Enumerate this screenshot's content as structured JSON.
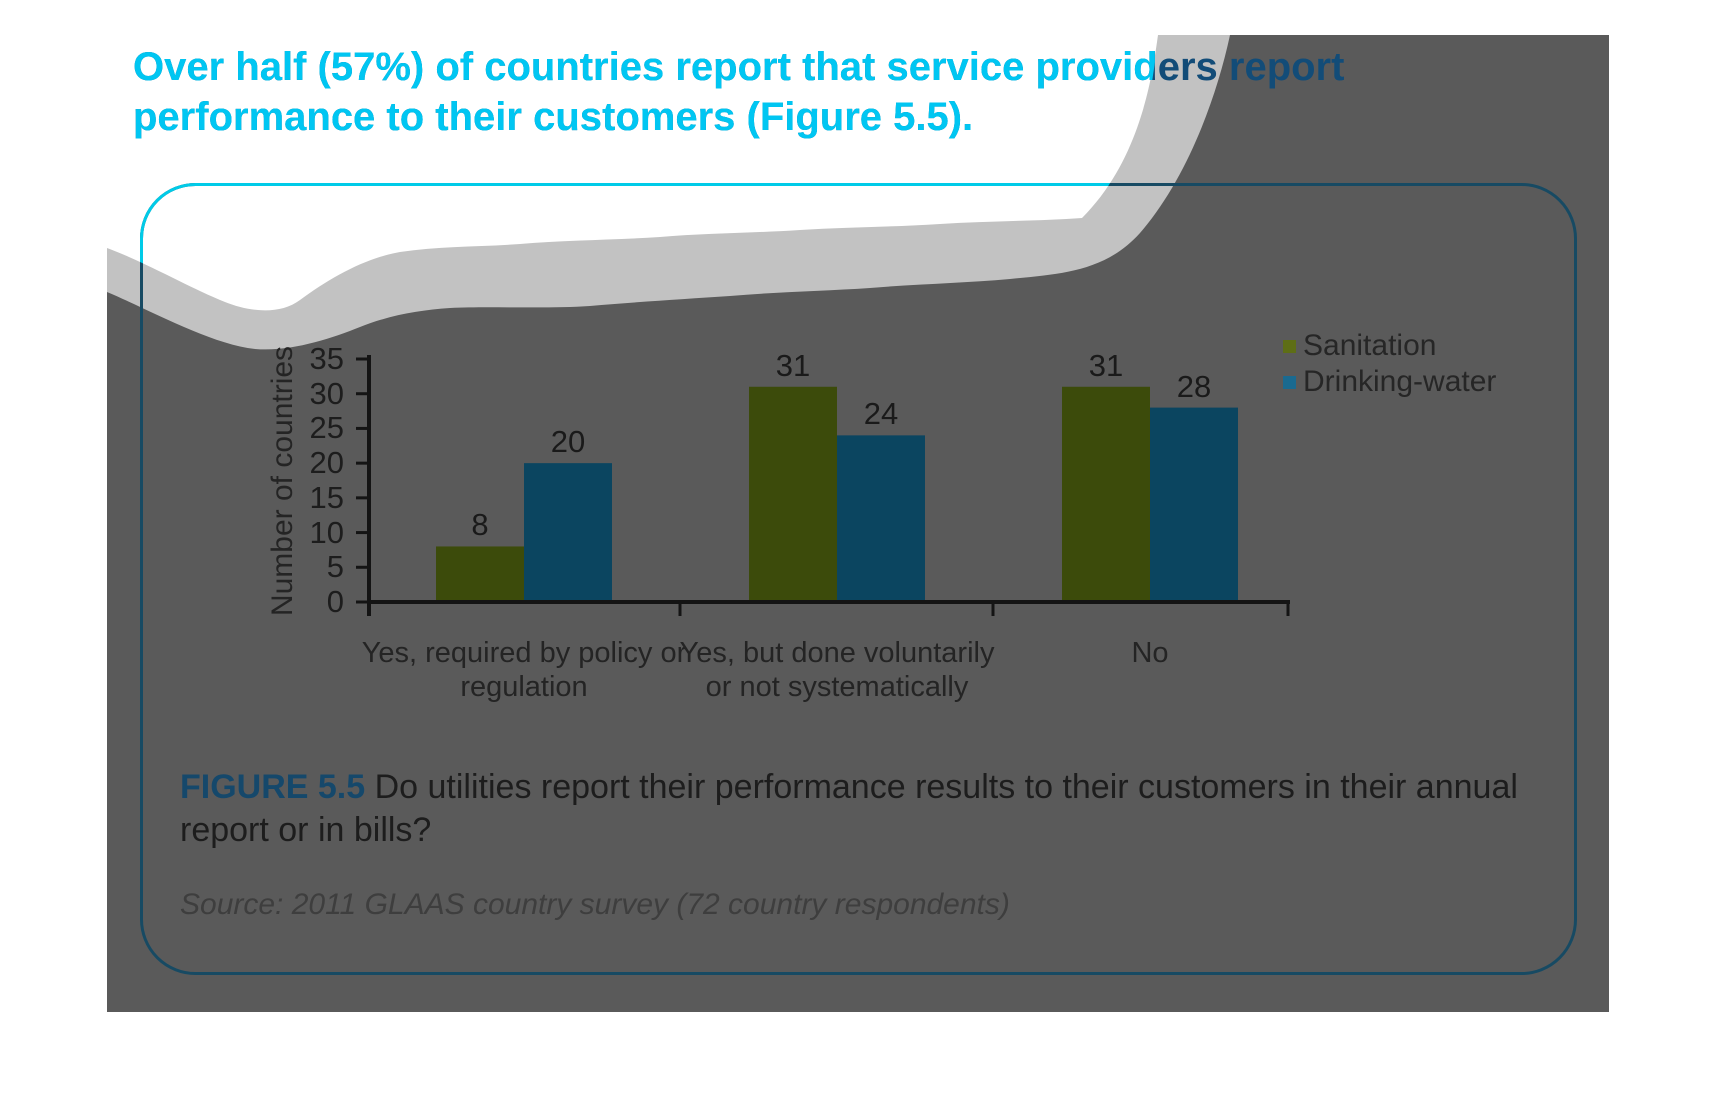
{
  "title": {
    "line1": "Over half (57%) of countries report that service providers report",
    "line2": "performance to their customers (Figure 5.5)."
  },
  "figure_caption": {
    "label": "FIGURE 5.5",
    "text": " Do utilities report their performance results to their customers in their annual report or in bills?"
  },
  "source": "Source: 2011 GLAAS country survey (72 country respondents)",
  "chart_data": {
    "type": "bar",
    "categories": [
      "Yes, required by policy or regulation",
      "Yes, but done voluntarily or not systematically",
      "No"
    ],
    "category_lines": [
      [
        "Yes, required by policy or",
        "regulation"
      ],
      [
        "Yes, but done voluntarily",
        "or not systematically"
      ],
      [
        "No"
      ]
    ],
    "series": [
      {
        "name": "Sanitation",
        "values": [
          8,
          31,
          31
        ],
        "bar_color": "#3C4B0B",
        "legend_color": "#5E6E16"
      },
      {
        "name": "Drinking-water",
        "values": [
          20,
          24,
          28
        ],
        "bar_color": "#0B4560",
        "legend_color": "#1A6A90"
      }
    ],
    "data_labels": [
      [
        "8",
        "31",
        "31"
      ],
      [
        "20",
        "24",
        "28"
      ]
    ],
    "title": "",
    "xlabel": "",
    "ylabel": "Number of countries",
    "ylim": [
      0,
      35
    ],
    "yticks": [
      35,
      30,
      25,
      20,
      15,
      10,
      5,
      0
    ],
    "grid": false,
    "legend_position": "top-right"
  },
  "colors": {
    "title_cyan": "#00C6F2",
    "title_navy": "#124C78",
    "background_gray": "#5A5A5A",
    "wave_silver": "#C2C2C2",
    "box_border_navy": "#174A63",
    "box_border_cyan": "#00CBE8",
    "axis_black": "#141414",
    "caption_navy": "#15486B"
  }
}
